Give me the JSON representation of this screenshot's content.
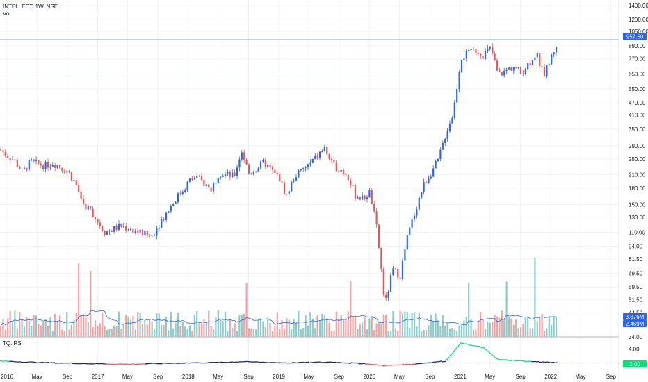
{
  "header": {
    "symbol_line": "INTELLECT, 1W, NSE",
    "volume_label": "Vol"
  },
  "rsi_pane": {
    "label": "TQ: RSI",
    "ticks": [
      "4.00"
    ],
    "value": "2.00"
  },
  "price_axis": {
    "ticks": [
      "1400.00",
      "1200.00",
      "1050.00",
      "890.00",
      "770.00",
      "650.00",
      "550.00",
      "470.00",
      "410.00",
      "350.00",
      "290.00",
      "250.00",
      "210.00",
      "180.00",
      "150.00",
      "130.00",
      "110.00",
      "94.00",
      "81.50",
      "69.50",
      "59.50",
      "51.50",
      "44.50",
      "34.00"
    ],
    "last_price": "957.50",
    "vol_tag_1": "3.376M",
    "vol_tag_2": "2.469M"
  },
  "time_axis": [
    "2016",
    "May",
    "Sep",
    "2017",
    "May",
    "Sep",
    "2018",
    "May",
    "Sep",
    "2019",
    "May",
    "Sep",
    "2020",
    "May",
    "Sep",
    "2021",
    "May",
    "Sep",
    "2022",
    "May",
    "Sep"
  ],
  "colors": {
    "up": "#2962ff",
    "down": "#ef5350",
    "vol_up": "#26a69a",
    "vol_down": "#ef5350",
    "rsi_high": "#00e676",
    "rsi_low": "#ff5252",
    "rsi_mid": "#1a237e",
    "vol_ma": "#2962ff",
    "last_price": "#2962ff"
  },
  "chart_data": {
    "type": "candlestick",
    "price_series": [
      [
        "2016-01",
        278
      ],
      [
        "2016-03",
        245
      ],
      [
        "2016-04",
        215
      ],
      [
        "2016-05",
        242
      ],
      [
        "2016-07",
        232
      ],
      [
        "2016-08",
        240
      ],
      [
        "2016-10",
        218
      ],
      [
        "2016-11",
        190
      ],
      [
        "2016-12",
        152
      ],
      [
        "2017-01",
        140
      ],
      [
        "2017-02",
        122
      ],
      [
        "2017-03",
        110
      ],
      [
        "2017-05",
        118
      ],
      [
        "2017-07",
        112
      ],
      [
        "2017-09",
        104
      ],
      [
        "2017-10",
        120
      ],
      [
        "2017-12",
        155
      ],
      [
        "2018-02",
        195
      ],
      [
        "2018-03",
        205
      ],
      [
        "2018-05",
        178
      ],
      [
        "2018-06",
        215
      ],
      [
        "2018-08",
        205
      ],
      [
        "2018-09",
        275
      ],
      [
        "2018-10",
        212
      ],
      [
        "2018-12",
        240
      ],
      [
        "2019-02",
        200
      ],
      [
        "2019-03",
        165
      ],
      [
        "2019-04",
        205
      ],
      [
        "2019-06",
        235
      ],
      [
        "2019-08",
        282
      ],
      [
        "2019-09",
        235
      ],
      [
        "2019-11",
        212
      ],
      [
        "2019-12",
        168
      ],
      [
        "2020-01",
        160
      ],
      [
        "2020-02",
        172
      ],
      [
        "2020-03",
        110
      ],
      [
        "2020-04",
        48
      ],
      [
        "2020-05",
        72
      ],
      [
        "2020-06",
        68
      ],
      [
        "2020-07",
        105
      ],
      [
        "2020-08",
        140
      ],
      [
        "2020-09",
        185
      ],
      [
        "2020-11",
        245
      ],
      [
        "2020-12",
        330
      ],
      [
        "2021-01",
        420
      ],
      [
        "2021-02",
        780
      ],
      [
        "2021-04",
        850
      ],
      [
        "2021-05",
        805
      ],
      [
        "2021-06",
        870
      ],
      [
        "2021-07",
        640
      ],
      [
        "2021-09",
        710
      ],
      [
        "2021-10",
        655
      ],
      [
        "2021-12",
        820
      ],
      [
        "2022-01",
        640
      ],
      [
        "2022-03",
        957.5
      ]
    ],
    "rsi_series": [
      [
        "2016-01",
        2.3
      ],
      [
        "2016-06",
        2.1
      ],
      [
        "2016-12",
        1.95
      ],
      [
        "2017-06",
        1.85
      ],
      [
        "2017-12",
        2.0
      ],
      [
        "2018-06",
        2.1
      ],
      [
        "2018-09",
        2.2
      ],
      [
        "2019-03",
        2.05
      ],
      [
        "2019-09",
        2.15
      ],
      [
        "2020-01",
        1.95
      ],
      [
        "2020-04",
        1.65
      ],
      [
        "2020-08",
        1.9
      ],
      [
        "2020-12",
        2.3
      ],
      [
        "2021-02",
        4.8
      ],
      [
        "2021-05",
        4.2
      ],
      [
        "2021-07",
        2.5
      ],
      [
        "2021-12",
        2.2
      ],
      [
        "2022-03",
        2.05
      ]
    ],
    "price_scale": "log",
    "ylim": [
      34,
      1400
    ]
  }
}
